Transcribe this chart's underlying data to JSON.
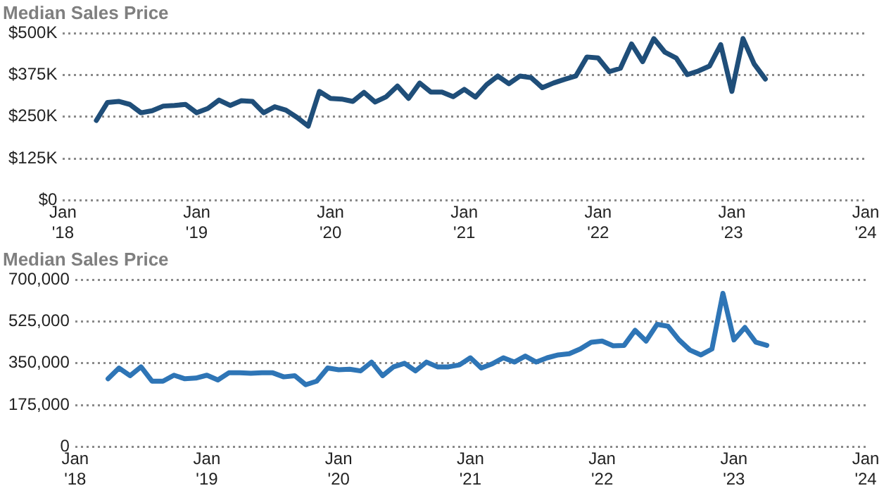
{
  "chart_data": [
    {
      "type": "line",
      "title": "Median Sales Price",
      "x": [
        "2018-04",
        "2018-05",
        "2018-06",
        "2018-07",
        "2018-08",
        "2018-09",
        "2018-10",
        "2018-11",
        "2018-12",
        "2019-01",
        "2019-02",
        "2019-03",
        "2019-04",
        "2019-05",
        "2019-06",
        "2019-07",
        "2019-08",
        "2019-09",
        "2019-10",
        "2019-11",
        "2019-12",
        "2020-01",
        "2020-02",
        "2020-03",
        "2020-04",
        "2020-05",
        "2020-06",
        "2020-07",
        "2020-08",
        "2020-09",
        "2020-10",
        "2020-11",
        "2020-12",
        "2021-01",
        "2021-02",
        "2021-03",
        "2021-04",
        "2021-05",
        "2021-06",
        "2021-07",
        "2021-08",
        "2021-09",
        "2021-10",
        "2021-11",
        "2021-12",
        "2022-01",
        "2022-02",
        "2022-03",
        "2022-04",
        "2022-05",
        "2022-06",
        "2022-07",
        "2022-08",
        "2022-09",
        "2022-10",
        "2022-11",
        "2022-12",
        "2023-01",
        "2023-02",
        "2023-03",
        "2023-04"
      ],
      "series": [
        {
          "color": "#1f4e79",
          "values": [
            239000,
            293000,
            296000,
            287000,
            262000,
            268000,
            282000,
            284000,
            287000,
            262000,
            275000,
            300000,
            284000,
            298000,
            296000,
            262000,
            280000,
            270000,
            248000,
            222000,
            326000,
            305000,
            303000,
            296000,
            323000,
            294000,
            310000,
            342000,
            305000,
            351000,
            324000,
            324000,
            310000,
            332000,
            309000,
            346000,
            372000,
            349000,
            372000,
            367000,
            337000,
            351000,
            362000,
            372000,
            429000,
            426000,
            385000,
            395000,
            468000,
            415000,
            484000,
            443000,
            426000,
            376000,
            387000,
            402000,
            466000,
            326000,
            484000,
            408000,
            363000
          ]
        }
      ],
      "xlim": [
        "2018-01",
        "2024-01"
      ],
      "xticks": [
        {
          "value": "2018-01",
          "label": "Jan\n'18"
        },
        {
          "value": "2019-01",
          "label": "Jan\n'19"
        },
        {
          "value": "2020-01",
          "label": "Jan\n'20"
        },
        {
          "value": "2021-01",
          "label": "Jan\n'21"
        },
        {
          "value": "2022-01",
          "label": "Jan\n'22"
        },
        {
          "value": "2023-01",
          "label": "Jan\n'23"
        },
        {
          "value": "2024-01",
          "label": "Jan\n'24"
        }
      ],
      "ylim": [
        0,
        500000
      ],
      "yticks": [
        {
          "value": 0,
          "label": "$0"
        },
        {
          "value": 125000,
          "label": "$125K"
        },
        {
          "value": 250000,
          "label": "$250K"
        },
        {
          "value": 375000,
          "label": "$375K"
        },
        {
          "value": 500000,
          "label": "$500K"
        }
      ],
      "grid": "y",
      "legend": false,
      "marker": "none",
      "line_style": "solid"
    },
    {
      "type": "line",
      "title": "Median Sales Price",
      "x": [
        "2018-04",
        "2018-05",
        "2018-06",
        "2018-07",
        "2018-08",
        "2018-09",
        "2018-10",
        "2018-11",
        "2018-12",
        "2019-01",
        "2019-02",
        "2019-03",
        "2019-04",
        "2019-05",
        "2019-06",
        "2019-07",
        "2019-08",
        "2019-09",
        "2019-10",
        "2019-11",
        "2019-12",
        "2020-01",
        "2020-02",
        "2020-03",
        "2020-04",
        "2020-05",
        "2020-06",
        "2020-07",
        "2020-08",
        "2020-09",
        "2020-10",
        "2020-11",
        "2020-12",
        "2021-01",
        "2021-02",
        "2021-03",
        "2021-04",
        "2021-05",
        "2021-06",
        "2021-07",
        "2021-08",
        "2021-09",
        "2021-10",
        "2021-11",
        "2021-12",
        "2022-01",
        "2022-02",
        "2022-03",
        "2022-04",
        "2022-05",
        "2022-06",
        "2022-07",
        "2022-08",
        "2022-09",
        "2022-10",
        "2022-11",
        "2022-12",
        "2023-01",
        "2023-02",
        "2023-03",
        "2023-04"
      ],
      "series": [
        {
          "color": "#2e75b6",
          "values": [
            285000,
            330000,
            298000,
            335000,
            275000,
            275000,
            300000,
            285000,
            288000,
            300000,
            280000,
            310000,
            310000,
            308000,
            310000,
            310000,
            293000,
            298000,
            260000,
            275000,
            330000,
            323000,
            325000,
            318000,
            355000,
            298000,
            335000,
            350000,
            318000,
            355000,
            335000,
            335000,
            343000,
            373000,
            330000,
            348000,
            373000,
            355000,
            380000,
            355000,
            373000,
            385000,
            390000,
            410000,
            438000,
            443000,
            423000,
            425000,
            488000,
            443000,
            513000,
            505000,
            448000,
            405000,
            385000,
            410000,
            643000,
            448000,
            500000,
            438000,
            425000
          ]
        }
      ],
      "xlim": [
        "2018-01",
        "2024-01"
      ],
      "xticks": [
        {
          "value": "2018-01",
          "label": "Jan\n'18"
        },
        {
          "value": "2019-01",
          "label": "Jan\n'19"
        },
        {
          "value": "2020-01",
          "label": "Jan\n'20"
        },
        {
          "value": "2021-01",
          "label": "Jan\n'21"
        },
        {
          "value": "2022-01",
          "label": "Jan\n'22"
        },
        {
          "value": "2023-01",
          "label": "Jan\n'23"
        },
        {
          "value": "2024-01",
          "label": "Jan\n'24"
        }
      ],
      "ylim": [
        0,
        700000
      ],
      "yticks": [
        0,
        {
          "value": 175000,
          "label": "175,000"
        },
        {
          "value": 350000,
          "label": "350,000"
        },
        {
          "value": 525000,
          "label": "525,000"
        },
        {
          "value": 700000,
          "label": "700,000"
        }
      ],
      "grid": "y",
      "legend": false,
      "marker": "none",
      "line_style": "solid"
    }
  ]
}
